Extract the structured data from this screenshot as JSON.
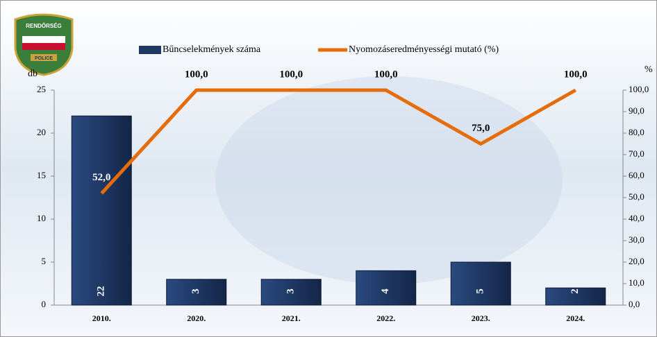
{
  "logo": {
    "top": "RENDŐRSÉG",
    "bottom": "POLICE"
  },
  "chart_data": {
    "type": "bar_line",
    "categories": [
      "2010.",
      "2020.",
      "2021.",
      "2022.",
      "2023.",
      "2024."
    ],
    "series": [
      {
        "name": "Bűncselekmények száma",
        "color": "#1f3864",
        "values": [
          22,
          3,
          3,
          4,
          5,
          2
        ]
      },
      {
        "name": "Nyomozáseredményességi mutató (%)",
        "color": "#e46c0a",
        "axis": "y2",
        "type": "line",
        "values": [
          52,
          100,
          100,
          100,
          75,
          100
        ],
        "value_labels": [
          "52,0",
          "100,0",
          "100,0",
          "100,0",
          "75,0",
          "100,0"
        ]
      }
    ],
    "ylabel": "db",
    "y2label": "%",
    "ylim": [
      0,
      25
    ],
    "yticks": [
      0,
      5,
      10,
      15,
      20,
      25
    ],
    "y2lim": [
      0,
      100
    ],
    "y2ticks": [
      {
        "value": 0,
        "label": "0,0"
      },
      {
        "value": 10,
        "label": "10,0"
      },
      {
        "value": 20,
        "label": "20,0"
      },
      {
        "value": 30,
        "label": "30,0"
      },
      {
        "value": 40,
        "label": "40,0"
      },
      {
        "value": 50,
        "label": "50,0"
      },
      {
        "value": 60,
        "label": "60,0"
      },
      {
        "value": 70,
        "label": "70,0"
      },
      {
        "value": 80,
        "label": "80,0"
      },
      {
        "value": 90,
        "label": "90,0"
      },
      {
        "value": 100,
        "label": "100,0"
      }
    ]
  }
}
